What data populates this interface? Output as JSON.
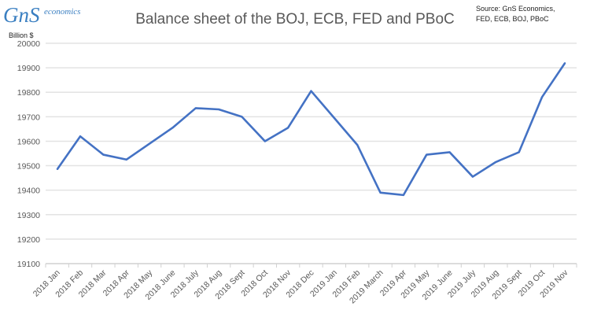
{
  "logo": {
    "text": "GnS",
    "subtext": "economics"
  },
  "source": "Source: GnS Economics,\nFED, ECB, BOJ, PBoC",
  "chart_data": {
    "type": "line",
    "title": "Balance sheet of the BOJ, ECB, FED and PBoC",
    "ylabel": "Billion $",
    "xlabel": "",
    "ylim": [
      19100,
      20000
    ],
    "yticks": [
      19100,
      19200,
      19300,
      19400,
      19500,
      19600,
      19700,
      19800,
      19900,
      20000
    ],
    "grid": true,
    "line_color": "#4472C4",
    "categories": [
      "2018 Jan",
      "2018 Feb",
      "2018 Mar",
      "2018 Apr",
      "2018 May",
      "2018 June",
      "2018 July",
      "2018 Aug",
      "2018 Sept",
      "2018 Oct",
      "2018 Nov",
      "2018 Dec",
      "2019 Jan",
      "2019 Feb",
      "2019 March",
      "2019 Apr",
      "2019 May",
      "2019 June",
      "2019 July",
      "2019 Aug",
      "2019 Sept",
      "2019 Oct",
      "2019 Nov"
    ],
    "values": [
      19485,
      19620,
      19545,
      19525,
      19590,
      19655,
      19735,
      19730,
      19700,
      19600,
      19655,
      19805,
      19695,
      19585,
      19390,
      19380,
      19545,
      19555,
      19455,
      19515,
      19555,
      19780,
      19920
    ]
  }
}
